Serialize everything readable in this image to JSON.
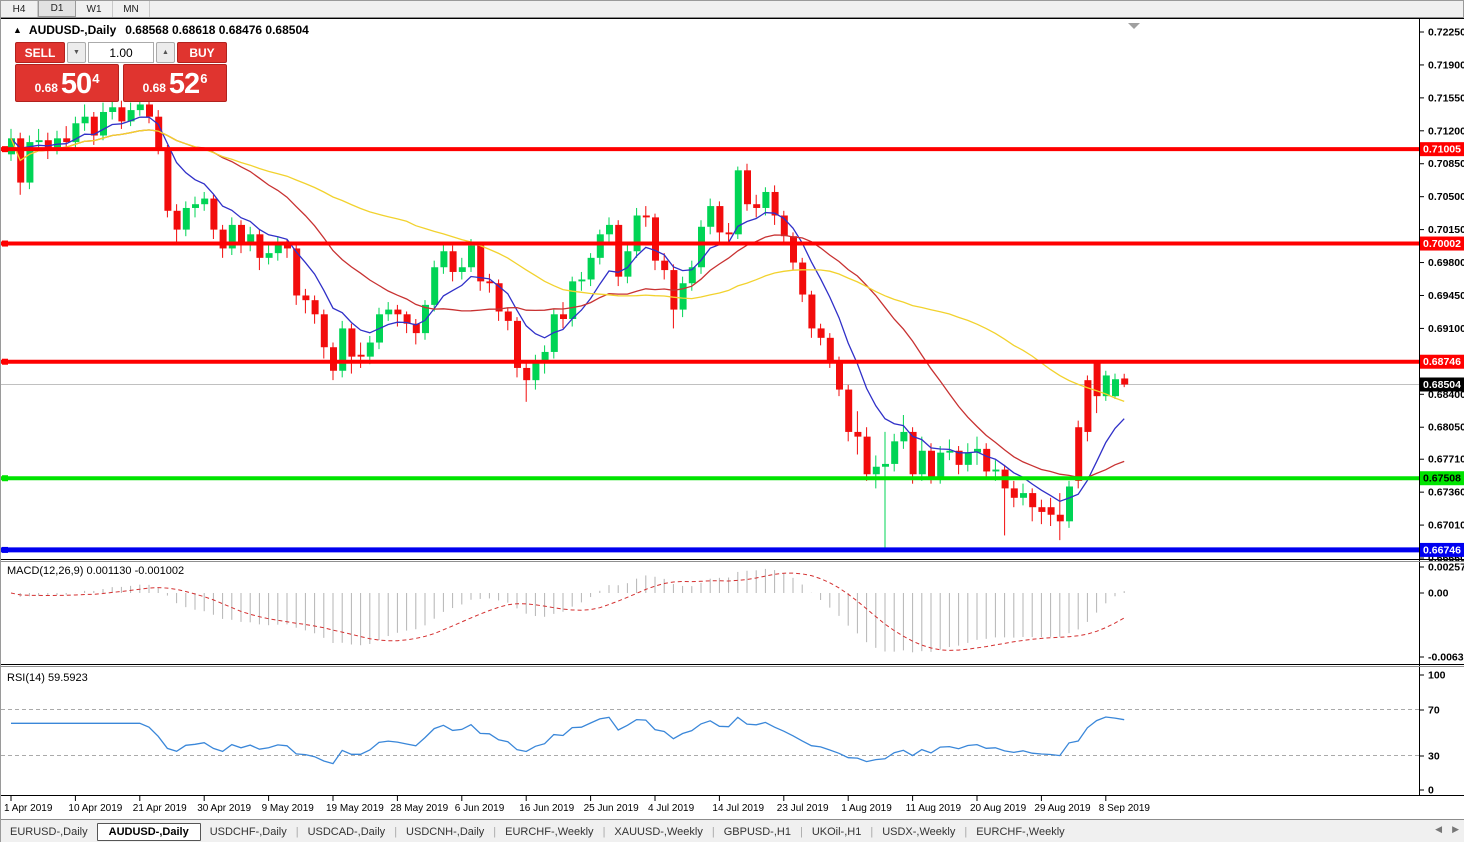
{
  "toolbar": {
    "timeframes": [
      {
        "label": "H4",
        "active": false
      },
      {
        "label": "D1",
        "active": true
      },
      {
        "label": "W1",
        "active": false
      },
      {
        "label": "MN",
        "active": false
      }
    ]
  },
  "icons": {
    "collapse": "▲",
    "spin_down": "▼",
    "spin_up": "▲",
    "shift_marker": "▼",
    "tab_prev": "◀",
    "tab_next": "▶"
  },
  "header": {
    "symbol_title": "AUDUSD-,Daily",
    "ohlc_text": "0.68568 0.68618 0.68476 0.68504"
  },
  "trade_panel": {
    "sell_label": "SELL",
    "buy_label": "BUY",
    "volume": "1.00",
    "sell_price_prefix": "0.68",
    "sell_price_big": "50",
    "sell_price_sup": "4",
    "buy_price_prefix": "0.68",
    "buy_price_big": "52",
    "buy_price_sup": "6",
    "panel_color": "#e0342f"
  },
  "chart_data": {
    "type": "candlestick",
    "symbol": "AUDUSD",
    "timeframe": "Daily",
    "y_axis_ticks": [
      "0.72250",
      "0.71900",
      "0.71550",
      "0.71200",
      "0.70850",
      "0.70500",
      "0.70150",
      "0.69800",
      "0.69450",
      "0.69100",
      "0.68400",
      "0.68050",
      "0.67710",
      "0.67360",
      "0.67010",
      "0.66660"
    ],
    "y_axis_top": 0.7225,
    "y_axis_bottom": 0.6666,
    "x_tick_labels": [
      "1 Apr 2019",
      "10 Apr 2019",
      "21 Apr 2019",
      "30 Apr 2019",
      "9 May 2019",
      "19 May 2019",
      "28 May 2019",
      "6 Jun 2019",
      "16 Jun 2019",
      "25 Jun 2019",
      "4 Jul 2019",
      "14 Jul 2019",
      "23 Jul 2019",
      "1 Aug 2019",
      "11 Aug 2019",
      "20 Aug 2019",
      "29 Aug 2019",
      "8 Sep 2019"
    ],
    "x_tick_interval": 7,
    "levels": [
      {
        "name": "resistance-1",
        "value": 0.71005,
        "label": "0.71005",
        "color": "#ff0000",
        "text_color": "#ffffff",
        "thickness": 4
      },
      {
        "name": "resistance-2",
        "value": 0.70002,
        "label": "0.70002",
        "color": "#ff0000",
        "text_color": "#ffffff",
        "thickness": 4
      },
      {
        "name": "resistance-3",
        "value": 0.68746,
        "label": "0.68746",
        "color": "#ff0000",
        "text_color": "#ffffff",
        "thickness": 4
      },
      {
        "name": "support-green",
        "value": 0.67508,
        "label": "0.67508",
        "color": "#00e400",
        "text_color": "#000000",
        "thickness": 4
      },
      {
        "name": "support-blue",
        "value": 0.66746,
        "label": "0.66746",
        "color": "#0000f0",
        "text_color": "#ffffff",
        "thickness": 5
      }
    ],
    "current_price": {
      "value": 0.68504,
      "label": "0.68504",
      "tag_bg": "#000000",
      "tag_text": "#ffffff",
      "line_color": "#c0c0c0"
    },
    "moving_averages": [
      {
        "name": "ma-fast",
        "type": "ema",
        "period": 8,
        "color": "#3030c8"
      },
      {
        "name": "ma-mid",
        "type": "sma",
        "period": 20,
        "color": "#c83232"
      },
      {
        "name": "ma-slow",
        "type": "sma",
        "period": 44,
        "color": "#f2d22e"
      }
    ],
    "colors": {
      "bull": "#00d455",
      "bear": "#f20c0c"
    },
    "candles": [
      [
        0.7095,
        0.7122,
        0.7088,
        0.7112
      ],
      [
        0.7112,
        0.7118,
        0.7052,
        0.7065
      ],
      [
        0.7065,
        0.7115,
        0.7058,
        0.7108
      ],
      [
        0.7108,
        0.7122,
        0.7098,
        0.711
      ],
      [
        0.711,
        0.7118,
        0.709,
        0.7102
      ],
      [
        0.7102,
        0.712,
        0.7095,
        0.7112
      ],
      [
        0.7112,
        0.7125,
        0.71,
        0.7108
      ],
      [
        0.7108,
        0.7135,
        0.7102,
        0.7128
      ],
      [
        0.7128,
        0.7148,
        0.712,
        0.7135
      ],
      [
        0.7135,
        0.714,
        0.7105,
        0.7115
      ],
      [
        0.7115,
        0.715,
        0.711,
        0.714
      ],
      [
        0.714,
        0.7155,
        0.7132,
        0.7145
      ],
      [
        0.7145,
        0.7152,
        0.7122,
        0.713
      ],
      [
        0.713,
        0.715,
        0.7125,
        0.7142
      ],
      [
        0.7142,
        0.7153,
        0.7136,
        0.7148
      ],
      [
        0.7148,
        0.7155,
        0.7128,
        0.7135
      ],
      [
        0.7135,
        0.7142,
        0.7095,
        0.71
      ],
      [
        0.71,
        0.7105,
        0.7028,
        0.7035
      ],
      [
        0.7035,
        0.7042,
        0.7,
        0.7015
      ],
      [
        0.7015,
        0.7045,
        0.7008,
        0.7038
      ],
      [
        0.7038,
        0.705,
        0.7028,
        0.7042
      ],
      [
        0.7042,
        0.7055,
        0.7035,
        0.7048
      ],
      [
        0.7048,
        0.7052,
        0.7005,
        0.7015
      ],
      [
        0.7015,
        0.702,
        0.6985,
        0.6995
      ],
      [
        0.6995,
        0.7028,
        0.6988,
        0.702
      ],
      [
        0.702,
        0.7025,
        0.699,
        0.7
      ],
      [
        0.7,
        0.7018,
        0.6992,
        0.701
      ],
      [
        0.701,
        0.7015,
        0.6972,
        0.6985
      ],
      [
        0.6985,
        0.7,
        0.6978,
        0.699
      ],
      [
        0.699,
        0.7008,
        0.6982,
        0.7
      ],
      [
        0.7,
        0.7005,
        0.6985,
        0.6995
      ],
      [
        0.6995,
        0.7,
        0.6935,
        0.6945
      ],
      [
        0.6945,
        0.6952,
        0.6926,
        0.694
      ],
      [
        0.694,
        0.6945,
        0.6915,
        0.6925
      ],
      [
        0.6925,
        0.693,
        0.6878,
        0.689
      ],
      [
        0.689,
        0.6895,
        0.6855,
        0.6865
      ],
      [
        0.6865,
        0.6918,
        0.6858,
        0.691
      ],
      [
        0.691,
        0.6915,
        0.6862,
        0.688
      ],
      [
        0.6882,
        0.6895,
        0.6868,
        0.688
      ],
      [
        0.688,
        0.6902,
        0.6872,
        0.6895
      ],
      [
        0.6895,
        0.6932,
        0.6888,
        0.6925
      ],
      [
        0.6925,
        0.6938,
        0.6918,
        0.693
      ],
      [
        0.693,
        0.6935,
        0.6912,
        0.6925
      ],
      [
        0.6925,
        0.6928,
        0.6905,
        0.6915
      ],
      [
        0.6915,
        0.692,
        0.6893,
        0.6905
      ],
      [
        0.6905,
        0.694,
        0.6898,
        0.6935
      ],
      [
        0.6935,
        0.6982,
        0.6928,
        0.6975
      ],
      [
        0.6975,
        0.7,
        0.6968,
        0.6992
      ],
      [
        0.6992,
        0.6998,
        0.696,
        0.697
      ],
      [
        0.697,
        0.6985,
        0.6962,
        0.6975
      ],
      [
        0.6975,
        0.7005,
        0.697,
        0.6998
      ],
      [
        0.6998,
        0.7002,
        0.695,
        0.696
      ],
      [
        0.696,
        0.6968,
        0.6948,
        0.6958
      ],
      [
        0.6958,
        0.6962,
        0.6918,
        0.6928
      ],
      [
        0.6928,
        0.6932,
        0.6908,
        0.6918
      ],
      [
        0.6918,
        0.6922,
        0.6858,
        0.6868
      ],
      [
        0.6868,
        0.6875,
        0.6832,
        0.6855
      ],
      [
        0.6855,
        0.6882,
        0.6845,
        0.6875
      ],
      [
        0.6875,
        0.6892,
        0.6862,
        0.6885
      ],
      [
        0.6885,
        0.693,
        0.6878,
        0.6925
      ],
      [
        0.6925,
        0.6938,
        0.691,
        0.692
      ],
      [
        0.692,
        0.6965,
        0.6912,
        0.696
      ],
      [
        0.696,
        0.697,
        0.695,
        0.6962
      ],
      [
        0.6962,
        0.699,
        0.6955,
        0.6985
      ],
      [
        0.6985,
        0.7015,
        0.6978,
        0.701
      ],
      [
        0.701,
        0.7028,
        0.7002,
        0.702
      ],
      [
        0.702,
        0.7025,
        0.6955,
        0.6965
      ],
      [
        0.6965,
        0.7,
        0.6958,
        0.6992
      ],
      [
        0.6992,
        0.7038,
        0.6985,
        0.703
      ],
      [
        0.703,
        0.704,
        0.7018,
        0.7028
      ],
      [
        0.7028,
        0.7032,
        0.6972,
        0.6982
      ],
      [
        0.6982,
        0.699,
        0.6962,
        0.6972
      ],
      [
        0.6972,
        0.6978,
        0.691,
        0.693
      ],
      [
        0.693,
        0.6965,
        0.6922,
        0.6958
      ],
      [
        0.6958,
        0.6982,
        0.695,
        0.6975
      ],
      [
        0.6975,
        0.7025,
        0.6968,
        0.7018
      ],
      [
        0.7018,
        0.7048,
        0.701,
        0.704
      ],
      [
        0.704,
        0.7045,
        0.7002,
        0.7012
      ],
      [
        0.7012,
        0.7022,
        0.7,
        0.701
      ],
      [
        0.701,
        0.7082,
        0.7005,
        0.7078
      ],
      [
        0.7078,
        0.7085,
        0.7035,
        0.7042
      ],
      [
        0.7042,
        0.7052,
        0.7028,
        0.7038
      ],
      [
        0.7038,
        0.706,
        0.703,
        0.7055
      ],
      [
        0.7055,
        0.7062,
        0.702,
        0.703
      ],
      [
        0.703,
        0.7035,
        0.7,
        0.7008
      ],
      [
        0.7008,
        0.7012,
        0.6972,
        0.698
      ],
      [
        0.698,
        0.6985,
        0.6938,
        0.6946
      ],
      [
        0.6946,
        0.695,
        0.69,
        0.691
      ],
      [
        0.691,
        0.6915,
        0.6892,
        0.69
      ],
      [
        0.69,
        0.6905,
        0.6868,
        0.6875
      ],
      [
        0.6875,
        0.688,
        0.6838,
        0.6845
      ],
      [
        0.6845,
        0.685,
        0.679,
        0.68
      ],
      [
        0.68,
        0.6822,
        0.6776,
        0.6795
      ],
      [
        0.6795,
        0.6805,
        0.6748,
        0.6755
      ],
      [
        0.6755,
        0.6775,
        0.674,
        0.6763
      ],
      [
        0.6763,
        0.68,
        0.6677,
        0.6766
      ],
      [
        0.6766,
        0.6798,
        0.6758,
        0.679
      ],
      [
        0.679,
        0.6818,
        0.6782,
        0.68
      ],
      [
        0.68,
        0.6805,
        0.6745,
        0.6755
      ],
      [
        0.6755,
        0.6795,
        0.6748,
        0.678
      ],
      [
        0.678,
        0.6788,
        0.6745,
        0.6752
      ],
      [
        0.6752,
        0.6785,
        0.6745,
        0.6778
      ],
      [
        0.6778,
        0.6792,
        0.677,
        0.678
      ],
      [
        0.678,
        0.6785,
        0.6755,
        0.6765
      ],
      [
        0.6765,
        0.6788,
        0.6758,
        0.6778
      ],
      [
        0.6778,
        0.6795,
        0.6765,
        0.6782
      ],
      [
        0.6782,
        0.6788,
        0.675,
        0.6758
      ],
      [
        0.6758,
        0.677,
        0.6748,
        0.676
      ],
      [
        0.676,
        0.6765,
        0.669,
        0.674
      ],
      [
        0.674,
        0.6748,
        0.672,
        0.673
      ],
      [
        0.673,
        0.6745,
        0.6722,
        0.6735
      ],
      [
        0.6735,
        0.674,
        0.6705,
        0.672
      ],
      [
        0.672,
        0.6728,
        0.6702,
        0.6715
      ],
      [
        0.672,
        0.673,
        0.67,
        0.6712
      ],
      [
        0.6712,
        0.6735,
        0.6685,
        0.6705
      ],
      [
        0.6705,
        0.6748,
        0.6698,
        0.6742
      ],
      [
        0.6805,
        0.6812,
        0.674,
        0.6748
      ],
      [
        0.6855,
        0.686,
        0.679,
        0.68
      ],
      [
        0.6874,
        0.6876,
        0.682,
        0.6838
      ],
      [
        0.6838,
        0.6865,
        0.6833,
        0.686
      ],
      [
        0.6838,
        0.6862,
        0.6835,
        0.6856
      ],
      [
        0.68568,
        0.68618,
        0.68476,
        0.68504
      ]
    ]
  },
  "macd_panel": {
    "label": "MACD(12,26,9) 0.001130 -0.001002",
    "fast": 12,
    "slow": 26,
    "signal": 9,
    "axis_labels": [
      "0.002574",
      "0.00",
      "-0.006326"
    ],
    "axis_max": 0.002574,
    "axis_min": -0.006326,
    "histogram_color": "#b4b4b4",
    "signal_color": "#d43030"
  },
  "rsi_panel": {
    "label": "RSI(14) 59.5923",
    "period": 14,
    "current_value": "59.5923",
    "axis_labels": [
      "100",
      "70",
      "30",
      "0"
    ],
    "overbought": 70,
    "oversold": 30,
    "line_color": "#3a87d9",
    "level_color": "#aaaaaa"
  },
  "tabs": {
    "items": [
      {
        "label": "EURUSD-,Daily",
        "active": false
      },
      {
        "label": "AUDUSD-,Daily",
        "active": true
      },
      {
        "label": "USDCHF-,Daily",
        "active": false
      },
      {
        "label": "USDCAD-,Daily",
        "active": false
      },
      {
        "label": "USDCNH-,Daily",
        "active": false
      },
      {
        "label": "EURCHF-,Weekly",
        "active": false
      },
      {
        "label": "XAUUSD-,Weekly",
        "active": false
      },
      {
        "label": "GBPUSD-,H1",
        "active": false
      },
      {
        "label": "UKOil-,H1",
        "active": false
      },
      {
        "label": "USDX-,Weekly",
        "active": false
      },
      {
        "label": "EURCHF-,Weekly",
        "active": false
      }
    ]
  }
}
